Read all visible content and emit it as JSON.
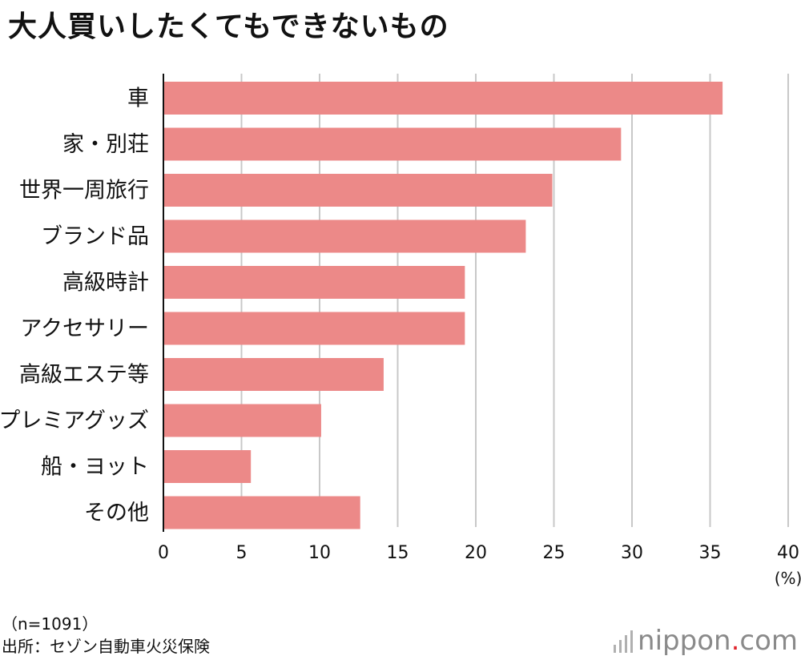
{
  "title": "大人買いしたくてもできないもの",
  "colors": {
    "bar": "#ec8988",
    "grid": "#c8c8c8",
    "axis": "#111111"
  },
  "chart_data": {
    "type": "bar",
    "orientation": "horizontal",
    "categories": [
      "車",
      "家・別荘",
      "世界一周旅行",
      "ブランド品",
      "高級時計",
      "アクセサリー",
      "高級エステ等",
      "プレミアグッズ",
      "船・ヨット",
      "その他"
    ],
    "values": [
      35.8,
      29.3,
      24.9,
      23.2,
      19.3,
      19.3,
      14.1,
      10.1,
      5.6,
      12.6
    ],
    "xlim": [
      0,
      40
    ],
    "xticks": [
      0,
      5,
      10,
      15,
      20,
      25,
      30,
      35,
      40
    ],
    "xunit": "(%)",
    "grid": true
  },
  "notes": {
    "sample": "（n=1091）",
    "source": "出所：セゾン自動車火災保険"
  },
  "logo": {
    "prefix": "nippon",
    "dot": ".",
    "suffix": "com",
    "icon": "nippon-stripes-icon"
  }
}
